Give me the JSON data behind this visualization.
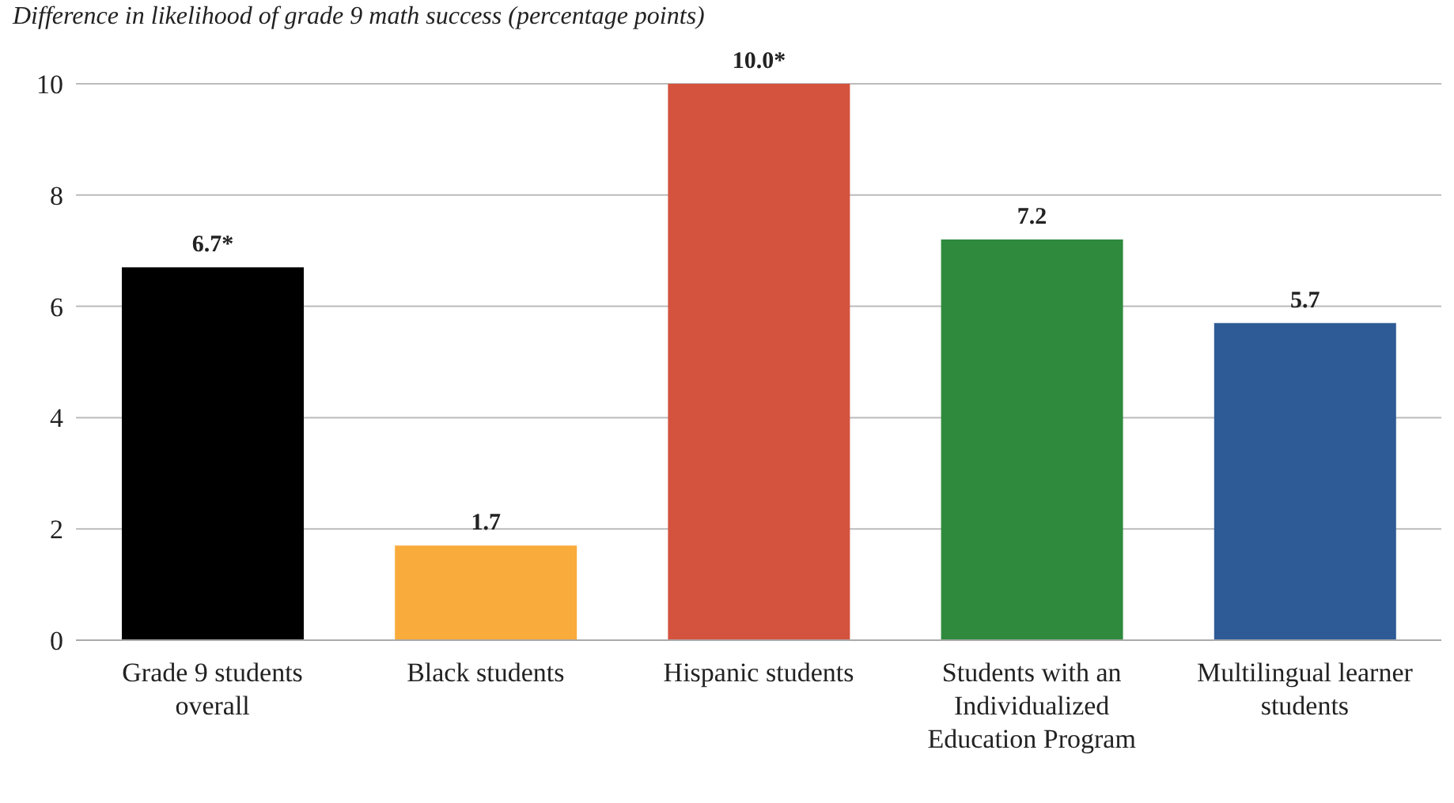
{
  "chart_data": {
    "type": "bar",
    "title": "Difference in likelihood of grade 9 math success (percentage points)",
    "categories": [
      "Grade 9 students overall",
      "Black students",
      "Hispanic students",
      "Students with an Individualized Education Program",
      "Multilingual learner students"
    ],
    "values": [
      6.7,
      1.7,
      10.0,
      7.2,
      5.7
    ],
    "colors": [
      "#000000",
      "#f9ab3c",
      "#d4533f",
      "#2f8a3e",
      "#2e5b95"
    ],
    "value_labels": [
      "6.7*",
      "1.7",
      "10.0*",
      "7.2",
      "5.7"
    ],
    "ylim": [
      0,
      10
    ],
    "yticks": [
      0,
      2,
      4,
      6,
      8,
      10
    ],
    "grid": "y"
  }
}
